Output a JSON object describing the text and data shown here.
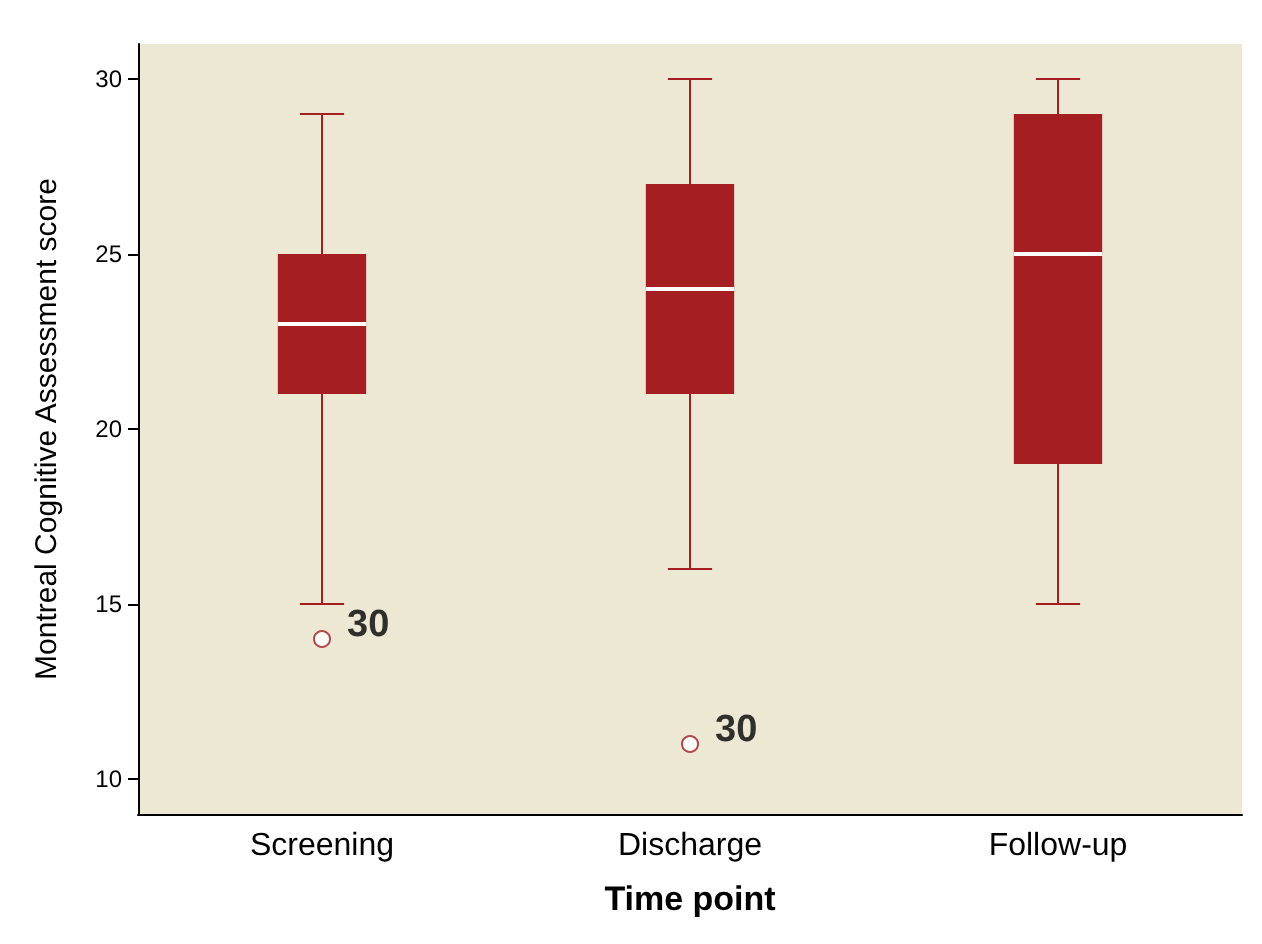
{
  "chart_data": {
    "type": "box",
    "xlabel": "Time point",
    "ylabel": "Montreal Cognitive Assessment score",
    "categories": [
      "Screening",
      "Discharge",
      "Follow-up"
    ],
    "boxes": [
      {
        "low": 15,
        "q1": 21,
        "median": 23,
        "q3": 25,
        "high": 29,
        "outliers": [
          14
        ]
      },
      {
        "low": 16,
        "q1": 21,
        "median": 24,
        "q3": 27,
        "high": 30,
        "outliers": [
          11
        ]
      },
      {
        "low": 15,
        "q1": 19,
        "median": 25,
        "q3": 29,
        "high": 30
      }
    ],
    "color": "#a51e22",
    "ylim": [
      9,
      31
    ],
    "yticks": [
      10,
      15,
      20,
      25,
      30
    ],
    "grid": false,
    "annotations": [
      "30",
      "30"
    ]
  }
}
